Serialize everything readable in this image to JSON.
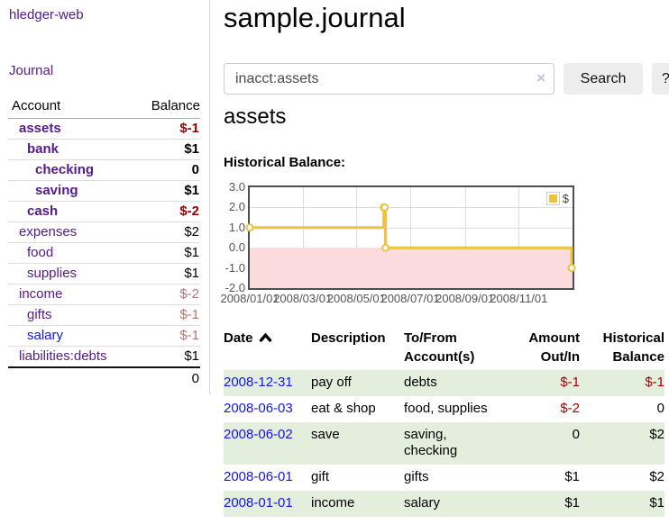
{
  "app": {
    "brand": "hledger-web",
    "nav_journal": "Journal"
  },
  "sidebar": {
    "headers": {
      "account": "Account",
      "balance": "Balance"
    },
    "accounts": [
      {
        "name": "assets",
        "balance": "$-1",
        "depth": 1,
        "bold": true,
        "negative": "strong"
      },
      {
        "name": "bank",
        "balance": "$1",
        "depth": 2,
        "bold": true,
        "negative": "none"
      },
      {
        "name": "checking",
        "balance": "0",
        "depth": 3,
        "bold": true,
        "negative": "none"
      },
      {
        "name": "saving",
        "balance": "$1",
        "depth": 3,
        "bold": true,
        "negative": "none"
      },
      {
        "name": "cash",
        "balance": "$-2",
        "depth": 2,
        "bold": true,
        "negative": "strong"
      },
      {
        "name": "expenses",
        "balance": "$2",
        "depth": 1,
        "bold": false,
        "negative": "none"
      },
      {
        "name": "food",
        "balance": "$1",
        "depth": 2,
        "bold": false,
        "negative": "none"
      },
      {
        "name": "supplies",
        "balance": "$1",
        "depth": 2,
        "bold": false,
        "negative": "none"
      },
      {
        "name": "income",
        "balance": "$-2",
        "depth": 1,
        "bold": false,
        "negative": "muted"
      },
      {
        "name": "gifts",
        "balance": "$-1",
        "depth": 2,
        "bold": false,
        "negative": "muted"
      },
      {
        "name": "salary",
        "balance": "$-1",
        "depth": 2,
        "bold": false,
        "negative": "muted",
        "link_color": "blue"
      },
      {
        "name": "liabilities:debts",
        "balance": "$1",
        "depth": 1,
        "bold": false,
        "negative": "none"
      }
    ],
    "total": "0"
  },
  "header": {
    "title": "sample.journal"
  },
  "search": {
    "value": "inacct:assets",
    "clear_icon": "×",
    "button_label": "Search",
    "help_label": "?"
  },
  "account_page": {
    "title": "assets",
    "chart_label": "Historical Balance:"
  },
  "chart_data": {
    "type": "line",
    "style": "steps-post",
    "title": "Historical Balance",
    "series": [
      {
        "name": "$",
        "points": [
          [
            "2008/01/01",
            1
          ],
          [
            "2008/06/01",
            2
          ],
          [
            "2008/06/02",
            2
          ],
          [
            "2008/06/03",
            0
          ],
          [
            "2008/12/31",
            -1
          ]
        ]
      }
    ],
    "x_range": [
      "2008/01/01",
      "2009/01/01"
    ],
    "x_ticks": [
      "2008/01/01",
      "2008/03/01",
      "2008/05/01",
      "2008/07/01",
      "2008/09/01",
      "2008/11/01"
    ],
    "ylim": [
      -2,
      3
    ],
    "y_ticks": [
      {
        "v": 3,
        "label": "3.0"
      },
      {
        "v": 2,
        "label": "2.0"
      },
      {
        "v": 1,
        "label": "1.0"
      },
      {
        "v": 0,
        "label": "0.0"
      },
      {
        "v": -1,
        "label": "-1.0"
      },
      {
        "v": -2,
        "label": "-2.0"
      }
    ],
    "legend": "$",
    "legend_position": "top-right",
    "grid": true,
    "colors": {
      "series": "#edc240",
      "marker_fill": "#ffffff",
      "negative_fill": "#fbdbdb",
      "zero_line": "#8b0000",
      "gridline": "#dedede",
      "border": "#4d4d4d"
    }
  },
  "register": {
    "headers": {
      "date": "Date",
      "description": "Description",
      "account": "To/From Account(s)",
      "amount": "Amount Out/In",
      "balance": "Historical Balance"
    },
    "rows": [
      {
        "date": "2008-12-31",
        "description": "pay off",
        "accounts": "debts",
        "amount": "$-1",
        "amount_neg": true,
        "balance": "$-1",
        "balance_neg": true
      },
      {
        "date": "2008-06-03",
        "description": "eat & shop",
        "accounts": "food, supplies",
        "amount": "$-2",
        "amount_neg": true,
        "balance": "0",
        "balance_neg": false
      },
      {
        "date": "2008-06-02",
        "description": "save",
        "accounts": "saving, checking",
        "amount": "0",
        "amount_neg": false,
        "balance": "$2",
        "balance_neg": false
      },
      {
        "date": "2008-06-01",
        "description": "gift",
        "accounts": "gifts",
        "amount": "$1",
        "amount_neg": false,
        "balance": "$2",
        "balance_neg": false
      },
      {
        "date": "2008-01-01",
        "description": "income",
        "accounts": "salary",
        "amount": "$1",
        "amount_neg": false,
        "balance": "$1",
        "balance_neg": false
      }
    ]
  }
}
